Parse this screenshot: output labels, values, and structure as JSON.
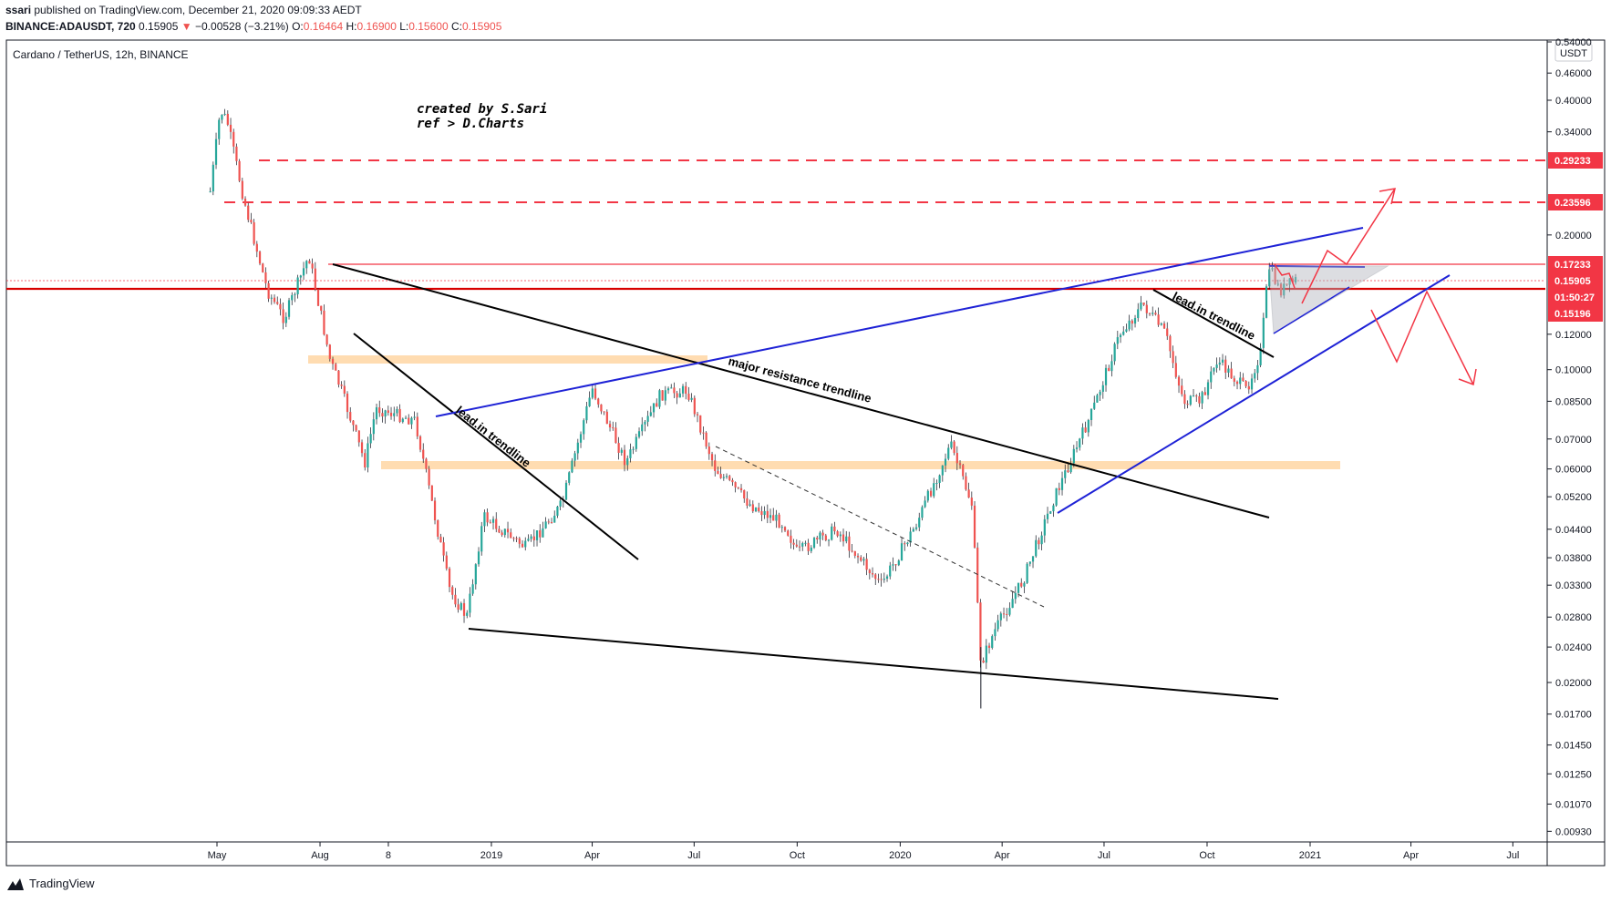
{
  "header": {
    "publisher": "ssari",
    "published_text": "published on TradingView.com, December 21, 2020 09:09:33 AEDT",
    "symbol_line": "BINANCE:ADAUSDT, 720",
    "last": "0.15905",
    "change": "−0.00528 (−3.21%)",
    "o_label": "O:",
    "o": "0.16464",
    "h_label": "H:",
    "h": "0.16900",
    "l_label": "L:",
    "l": "0.15600",
    "c_label": "C:",
    "c": "0.15905",
    "down_arrow": "▼"
  },
  "chart_title": "Cardano / TetherUS, 12h, BINANCE",
  "currency_label": "USDT",
  "watermark_line1": "created by S.Sari",
  "watermark_line2": "ref > D.Charts",
  "footer": {
    "brand": "TradingView",
    "logo_icon": "tradingview-logo-icon"
  },
  "colors": {
    "up": "#26a69a",
    "down": "#ef5350",
    "blue_line": "#1e22d6",
    "red": "#f23645",
    "orange_zone": "#ffd8a8",
    "black": "#000000",
    "grid": "#e1e3ea"
  },
  "chart_data": {
    "type": "candlestick",
    "y_scale": "log",
    "x_ticks": [
      "May",
      "Aug",
      "8",
      "2019",
      "Apr",
      "Jul",
      "Oct",
      "2020",
      "Apr",
      "Jul",
      "Oct",
      "2021",
      "Apr",
      "Jul"
    ],
    "y_ticks": [
      "0.54000",
      "0.46000",
      "0.40000",
      "0.34000",
      "0.20000",
      "0.12000",
      "0.10000",
      "0.08500",
      "0.07000",
      "0.06000",
      "0.05200",
      "0.04400",
      "0.03800",
      "0.03300",
      "0.02800",
      "0.02400",
      "0.02000",
      "0.01700",
      "0.01450",
      "0.01250",
      "0.01070",
      "0.00930"
    ],
    "price_labels": [
      {
        "text": "0.29233",
        "style": "red-box"
      },
      {
        "text": "0.23596",
        "style": "red-box"
      },
      {
        "text": "0.17233",
        "style": "red-box"
      },
      {
        "text": "0.15905",
        "style": "red-box"
      },
      {
        "text": "01:50:27",
        "style": "red-box"
      },
      {
        "text": "0.15196",
        "style": "red-box"
      }
    ],
    "annotations": [
      "lead.in trendline",
      "major resistance trendline",
      "lead.in trendline"
    ],
    "price_path": [
      {
        "t": "2018-04-25",
        "p": 0.25
      },
      {
        "t": "2018-05-04",
        "p": 0.38
      },
      {
        "t": "2018-05-10",
        "p": 0.36
      },
      {
        "t": "2018-05-25",
        "p": 0.24
      },
      {
        "t": "2018-06-15",
        "p": 0.15
      },
      {
        "t": "2018-06-30",
        "p": 0.13
      },
      {
        "t": "2018-07-22",
        "p": 0.18
      },
      {
        "t": "2018-08-10",
        "p": 0.105
      },
      {
        "t": "2018-08-20",
        "p": 0.09
      },
      {
        "t": "2018-09-10",
        "p": 0.062
      },
      {
        "t": "2018-09-20",
        "p": 0.082
      },
      {
        "t": "2018-10-25",
        "p": 0.077
      },
      {
        "t": "2018-11-25",
        "p": 0.032
      },
      {
        "t": "2018-12-10",
        "p": 0.028
      },
      {
        "t": "2018-12-25",
        "p": 0.047
      },
      {
        "t": "2019-02-01",
        "p": 0.04
      },
      {
        "t": "2019-03-05",
        "p": 0.05
      },
      {
        "t": "2019-04-01",
        "p": 0.091
      },
      {
        "t": "2019-05-01",
        "p": 0.062
      },
      {
        "t": "2019-06-01",
        "p": 0.088
      },
      {
        "t": "2019-06-25",
        "p": 0.09
      },
      {
        "t": "2019-07-20",
        "p": 0.06
      },
      {
        "t": "2019-08-20",
        "p": 0.05
      },
      {
        "t": "2019-09-20",
        "p": 0.045
      },
      {
        "t": "2019-10-01",
        "p": 0.039
      },
      {
        "t": "2019-11-05",
        "p": 0.044
      },
      {
        "t": "2019-12-15",
        "p": 0.033
      },
      {
        "t": "2020-01-15",
        "p": 0.045
      },
      {
        "t": "2020-02-15",
        "p": 0.068
      },
      {
        "t": "2020-03-05",
        "p": 0.05
      },
      {
        "t": "2020-03-13",
        "p": 0.022
      },
      {
        "t": "2020-03-25",
        "p": 0.026
      },
      {
        "t": "2020-04-20",
        "p": 0.034
      },
      {
        "t": "2020-05-15",
        "p": 0.05
      },
      {
        "t": "2020-06-20",
        "p": 0.08
      },
      {
        "t": "2020-07-15",
        "p": 0.12
      },
      {
        "t": "2020-08-05",
        "p": 0.14
      },
      {
        "t": "2020-08-25",
        "p": 0.12
      },
      {
        "t": "2020-09-10",
        "p": 0.085
      },
      {
        "t": "2020-09-25",
        "p": 0.085
      },
      {
        "t": "2020-10-10",
        "p": 0.105
      },
      {
        "t": "2020-11-05",
        "p": 0.09
      },
      {
        "t": "2020-11-18",
        "p": 0.11
      },
      {
        "t": "2020-11-25",
        "p": 0.17
      },
      {
        "t": "2020-12-05",
        "p": 0.15
      },
      {
        "t": "2020-12-20",
        "p": 0.159
      }
    ]
  }
}
